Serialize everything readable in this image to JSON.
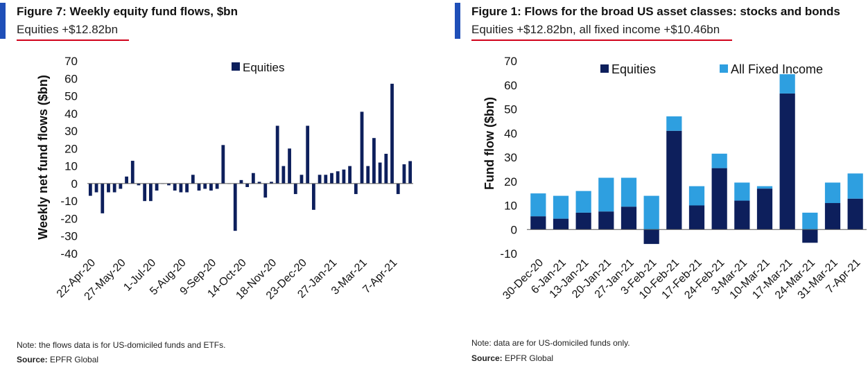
{
  "left": {
    "title": "Figure 7: Weekly equity fund flows, $bn",
    "subtitle": "Equities +$12.82bn",
    "note": "Note: the flows data is for US-domiciled funds and ETFs.",
    "source_label": "Source:",
    "source_value": "EPFR Global"
  },
  "right": {
    "title": "Figure 1: Flows for the broad US asset classes: stocks and bonds",
    "subtitle": "Equities +$12.82bn, all fixed income +$10.46bn",
    "note": "Note: data are for US-domiciled funds only.",
    "source_label": "Source:",
    "source_value": "EPFR Global"
  },
  "colors": {
    "equities": "#0d1f5c",
    "fixed_income": "#2e9fe0",
    "accent": "#1f4fb8",
    "underline": "#d0021b"
  },
  "chart_data": [
    {
      "type": "bar",
      "title": "Figure 7: Weekly equity fund flows, $bn",
      "ylabel": "Weekly net fund flows ($bn)",
      "xlabel": "",
      "ylim": [
        -40,
        70
      ],
      "yticks": [
        70,
        60,
        50,
        40,
        30,
        20,
        10,
        0,
        -10,
        -20,
        -30,
        -40
      ],
      "grid": false,
      "legend": {
        "position": "top-center",
        "entries": [
          "Equities"
        ]
      },
      "tick_labels": [
        "22-Apr-20",
        "27-May-20",
        "1-Jul-20",
        "5-Aug-20",
        "9-Sep-20",
        "14-Oct-20",
        "18-Nov-20",
        "23-Dec-20",
        "27-Jan-21",
        "3-Mar-21",
        "7-Apr-21"
      ],
      "tick_every": 5,
      "series": [
        {
          "name": "Equities",
          "values": [
            -7,
            -5,
            -17,
            -5,
            -5,
            -3,
            4,
            13,
            -1,
            -10,
            -10,
            -4,
            0,
            -1,
            -4,
            -5,
            -5,
            5,
            -4,
            -3,
            -4,
            -3,
            22,
            0,
            -27,
            2,
            -2,
            6,
            1,
            -8,
            1,
            33,
            10,
            20,
            -6,
            5,
            33,
            -15,
            5,
            5,
            6,
            7,
            8,
            10,
            -6,
            41,
            10,
            26,
            12,
            17,
            57,
            -6,
            11,
            12.82
          ]
        }
      ]
    },
    {
      "type": "bar",
      "stacked": true,
      "title": "Figure 1: Flows for the broad US asset classes: stocks and bonds",
      "ylabel": "Fund flow ($bn)",
      "xlabel": "",
      "ylim": [
        -10,
        70
      ],
      "yticks": [
        70,
        60,
        50,
        40,
        30,
        20,
        10,
        0,
        -10
      ],
      "grid": false,
      "legend": {
        "position": "top",
        "entries": [
          "Equities",
          "All Fixed Income"
        ]
      },
      "categories": [
        "30-Dec-20",
        "6-Jan-21",
        "13-Jan-21",
        "20-Jan-21",
        "27-Jan-21",
        "3-Feb-21",
        "10-Feb-21",
        "17-Feb-21",
        "24-Feb-21",
        "3-Mar-21",
        "10-Mar-21",
        "17-Mar-21",
        "24-Mar-21",
        "31-Mar-21",
        "7-Apr-21"
      ],
      "series": [
        {
          "name": "Equities",
          "values": [
            5.5,
            4.5,
            7,
            7.5,
            9.5,
            -6,
            41,
            10,
            25.5,
            12,
            17,
            56.5,
            -5.5,
            11,
            12.82
          ]
        },
        {
          "name": "All Fixed Income",
          "values": [
            9.5,
            9.5,
            9,
            14,
            12,
            14,
            6,
            8,
            6,
            7.5,
            1,
            8,
            7,
            8.5,
            10.46
          ]
        }
      ]
    }
  ]
}
